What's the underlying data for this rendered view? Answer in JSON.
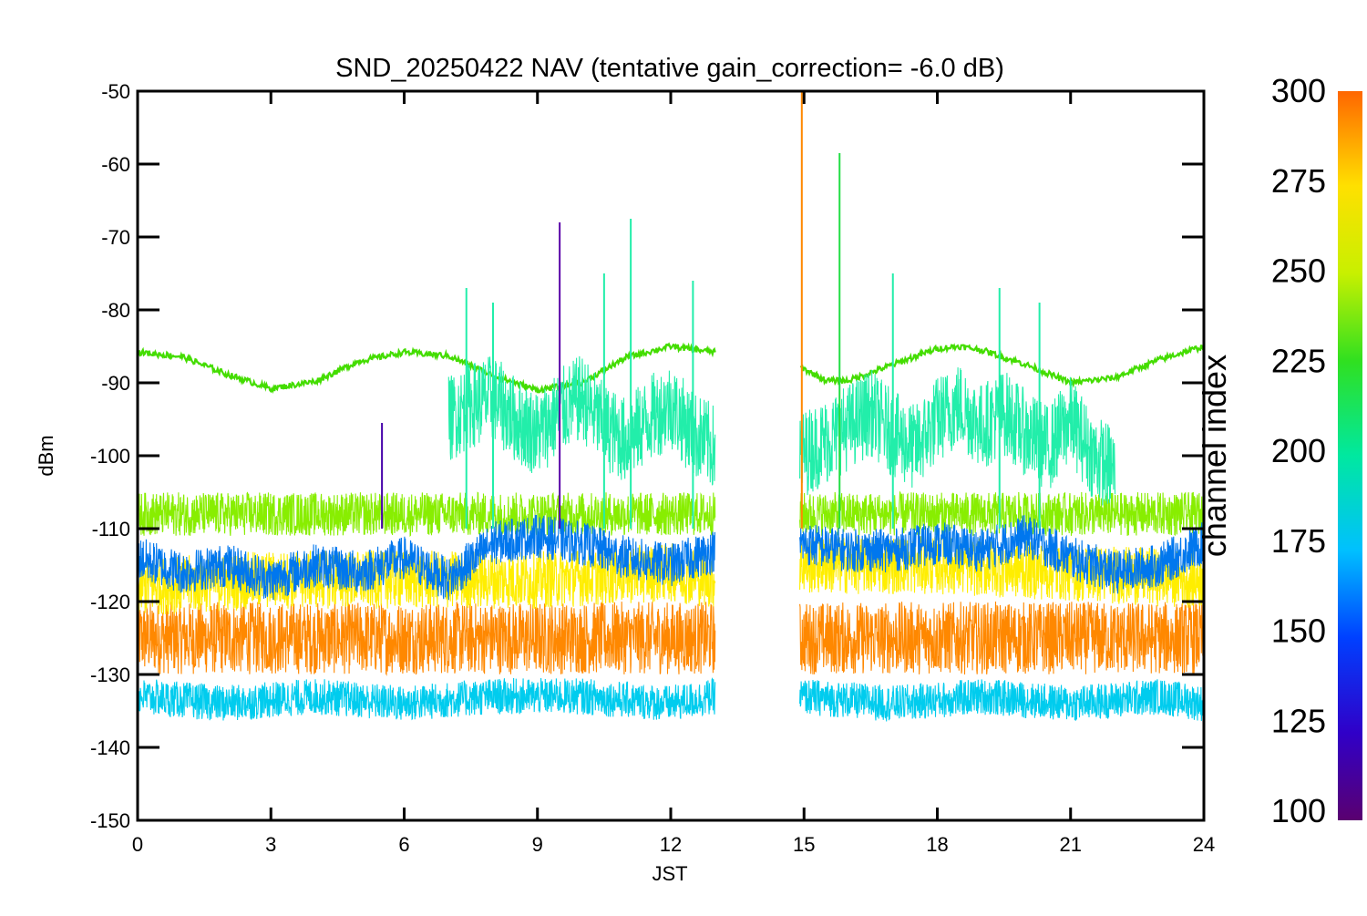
{
  "chart_data": {
    "type": "line",
    "title": "SND_20250422 NAV (tentative gain_correction= -6.0 dB)",
    "xlabel": "JST",
    "ylabel": "dBm",
    "xlim": [
      0,
      24
    ],
    "ylim": [
      -150,
      -50
    ],
    "x_ticks": [
      "0",
      "3",
      "6",
      "9",
      "12",
      "15",
      "18",
      "21",
      "24"
    ],
    "y_ticks": [
      "-50",
      "-60",
      "-70",
      "-80",
      "-90",
      "-100",
      "-110",
      "-120",
      "-130",
      "-140",
      "-150"
    ],
    "data_gap_hours": [
      13.0,
      14.9
    ],
    "colorbar": {
      "label": "channel index",
      "range": [
        100,
        300
      ],
      "ticks": [
        "300",
        "275",
        "250",
        "225",
        "200",
        "175",
        "150",
        "125",
        "100"
      ],
      "colormap": "rainbow"
    },
    "series": [
      {
        "channel": 290,
        "color": "#ff8800",
        "x": [
          0,
          3,
          6,
          9,
          12,
          13,
          14.9,
          18,
          21,
          24
        ],
        "y": [
          -125,
          -125,
          -125,
          -125,
          -125,
          -125,
          -125,
          -125,
          -125,
          -125
        ]
      },
      {
        "channel": 270,
        "color": "#ffee00",
        "x": [
          0,
          3,
          6,
          9,
          12,
          13,
          14.9,
          18,
          21,
          24
        ],
        "y": [
          -118,
          -117,
          -117,
          -117,
          -116,
          -117,
          -115,
          -115,
          -116,
          -117
        ]
      },
      {
        "channel": 245,
        "color": "#88ee00",
        "x": [
          0,
          3,
          6,
          9,
          12,
          13,
          14.9,
          18,
          21,
          24
        ],
        "y": [
          -108,
          -108,
          -108,
          -108,
          -108,
          -108,
          -108,
          -108,
          -108,
          -108
        ]
      },
      {
        "channel": 235,
        "color": "#44dd00",
        "x": [
          0,
          1,
          2,
          3,
          4,
          5,
          6,
          7,
          8,
          9,
          10,
          11,
          12,
          13,
          14.9,
          15.5,
          16,
          17,
          18,
          18.5,
          19,
          20,
          21,
          22,
          23,
          24
        ],
        "y": [
          -85.8,
          -86.4,
          -88.8,
          -90.8,
          -89.8,
          -87.0,
          -85.8,
          -86.3,
          -89.0,
          -91.0,
          -90.0,
          -86.5,
          -85.0,
          -85.8,
          -87.8,
          -89.7,
          -89.7,
          -87.5,
          -85.3,
          -85.0,
          -85.5,
          -87.5,
          -90.0,
          -89.3,
          -86.8,
          -85.0
        ]
      },
      {
        "channel": 205,
        "color": "#22eeaa",
        "x": [
          7.0,
          7.5,
          8.0,
          8.5,
          9.0,
          9.5,
          10.0,
          10.5,
          11.0,
          11.5,
          12.0,
          12.5,
          13.0,
          14.9,
          15.5,
          16.0,
          16.5,
          17.0,
          17.5,
          18.0,
          18.5,
          19.0,
          19.5,
          20.0,
          20.5,
          21.0,
          21.5,
          22.0
        ],
        "y": [
          -95,
          -93,
          -92,
          -95,
          -97,
          -94,
          -92,
          -96,
          -98,
          -95,
          -93,
          -97,
          -99,
          -100,
          -98,
          -96,
          -94,
          -97,
          -99,
          -95,
          -93,
          -96,
          -94,
          -97,
          -99,
          -95,
          -100,
          -102
        ]
      },
      {
        "channel": 155,
        "color": "#0077ee",
        "x": [
          0,
          1,
          2,
          3,
          4,
          5,
          6,
          7,
          8,
          9,
          10,
          11,
          12,
          13,
          14.9,
          16,
          17,
          18,
          19,
          20,
          21,
          22,
          23,
          24
        ],
        "y": [
          -114,
          -116,
          -115,
          -117,
          -115,
          -116,
          -114,
          -117,
          -112,
          -111,
          -112,
          -114,
          -115,
          -113,
          -112,
          -113,
          -113,
          -112,
          -113,
          -111,
          -114,
          -116,
          -115,
          -112
        ]
      },
      {
        "channel": 180,
        "color": "#00ccee",
        "x": [
          0,
          2,
          4,
          6,
          8,
          10,
          12,
          13,
          14.9,
          17,
          19,
          21,
          23,
          24
        ],
        "y": [
          -133,
          -134,
          -133,
          -134,
          -133,
          -133,
          -134,
          -133,
          -133,
          -134,
          -133,
          -134,
          -133,
          -134
        ]
      }
    ],
    "spikes": [
      {
        "x": 9.5,
        "y_top": -68,
        "color": "#5a00a8"
      },
      {
        "x": 11.1,
        "y_top": -67.5,
        "color": "#22eeaa"
      },
      {
        "x": 10.5,
        "y_top": -75,
        "color": "#22eeaa"
      },
      {
        "x": 5.5,
        "y_top": -95.5,
        "color": "#4400aa"
      },
      {
        "x": 15.8,
        "y_top": -58.5,
        "color": "#22dd44"
      },
      {
        "x": 7.4,
        "y_top": -77,
        "color": "#22eeaa"
      },
      {
        "x": 8.0,
        "y_top": -79,
        "color": "#22eeaa"
      },
      {
        "x": 12.5,
        "y_top": -76,
        "color": "#22eeaa"
      },
      {
        "x": 17.0,
        "y_top": -75,
        "color": "#22eeaa"
      },
      {
        "x": 19.4,
        "y_top": -77,
        "color": "#22eeaa"
      },
      {
        "x": 20.3,
        "y_top": -79,
        "color": "#22eeaa"
      },
      {
        "x": 14.95,
        "y_top": -50,
        "color": "#ff8800"
      }
    ]
  }
}
